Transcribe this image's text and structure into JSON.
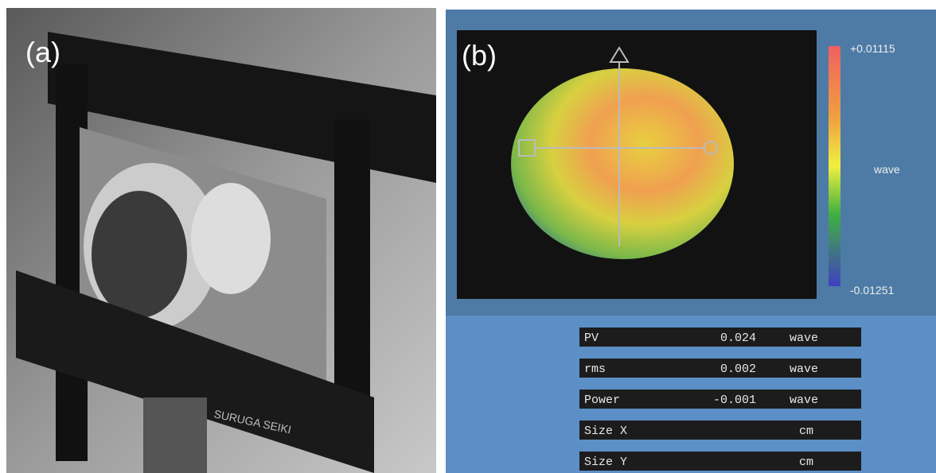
{
  "panel_a": {
    "label": "(a)",
    "brand": "SURUGA SEIKI"
  },
  "panel_b": {
    "label": "(b)",
    "colorbar": {
      "max": "+0.01115",
      "unit": "wave",
      "min": "-0.01251"
    },
    "table": {
      "rows": [
        {
          "label": "PV",
          "value": "0.024",
          "unit": "wave"
        },
        {
          "label": "rms",
          "value": "0.002",
          "unit": "wave"
        },
        {
          "label": "Power",
          "value": "-0.001",
          "unit": "wave"
        },
        {
          "label": "Size X",
          "unit": "cm"
        },
        {
          "label": "Size Y",
          "unit": "cm"
        }
      ]
    }
  }
}
